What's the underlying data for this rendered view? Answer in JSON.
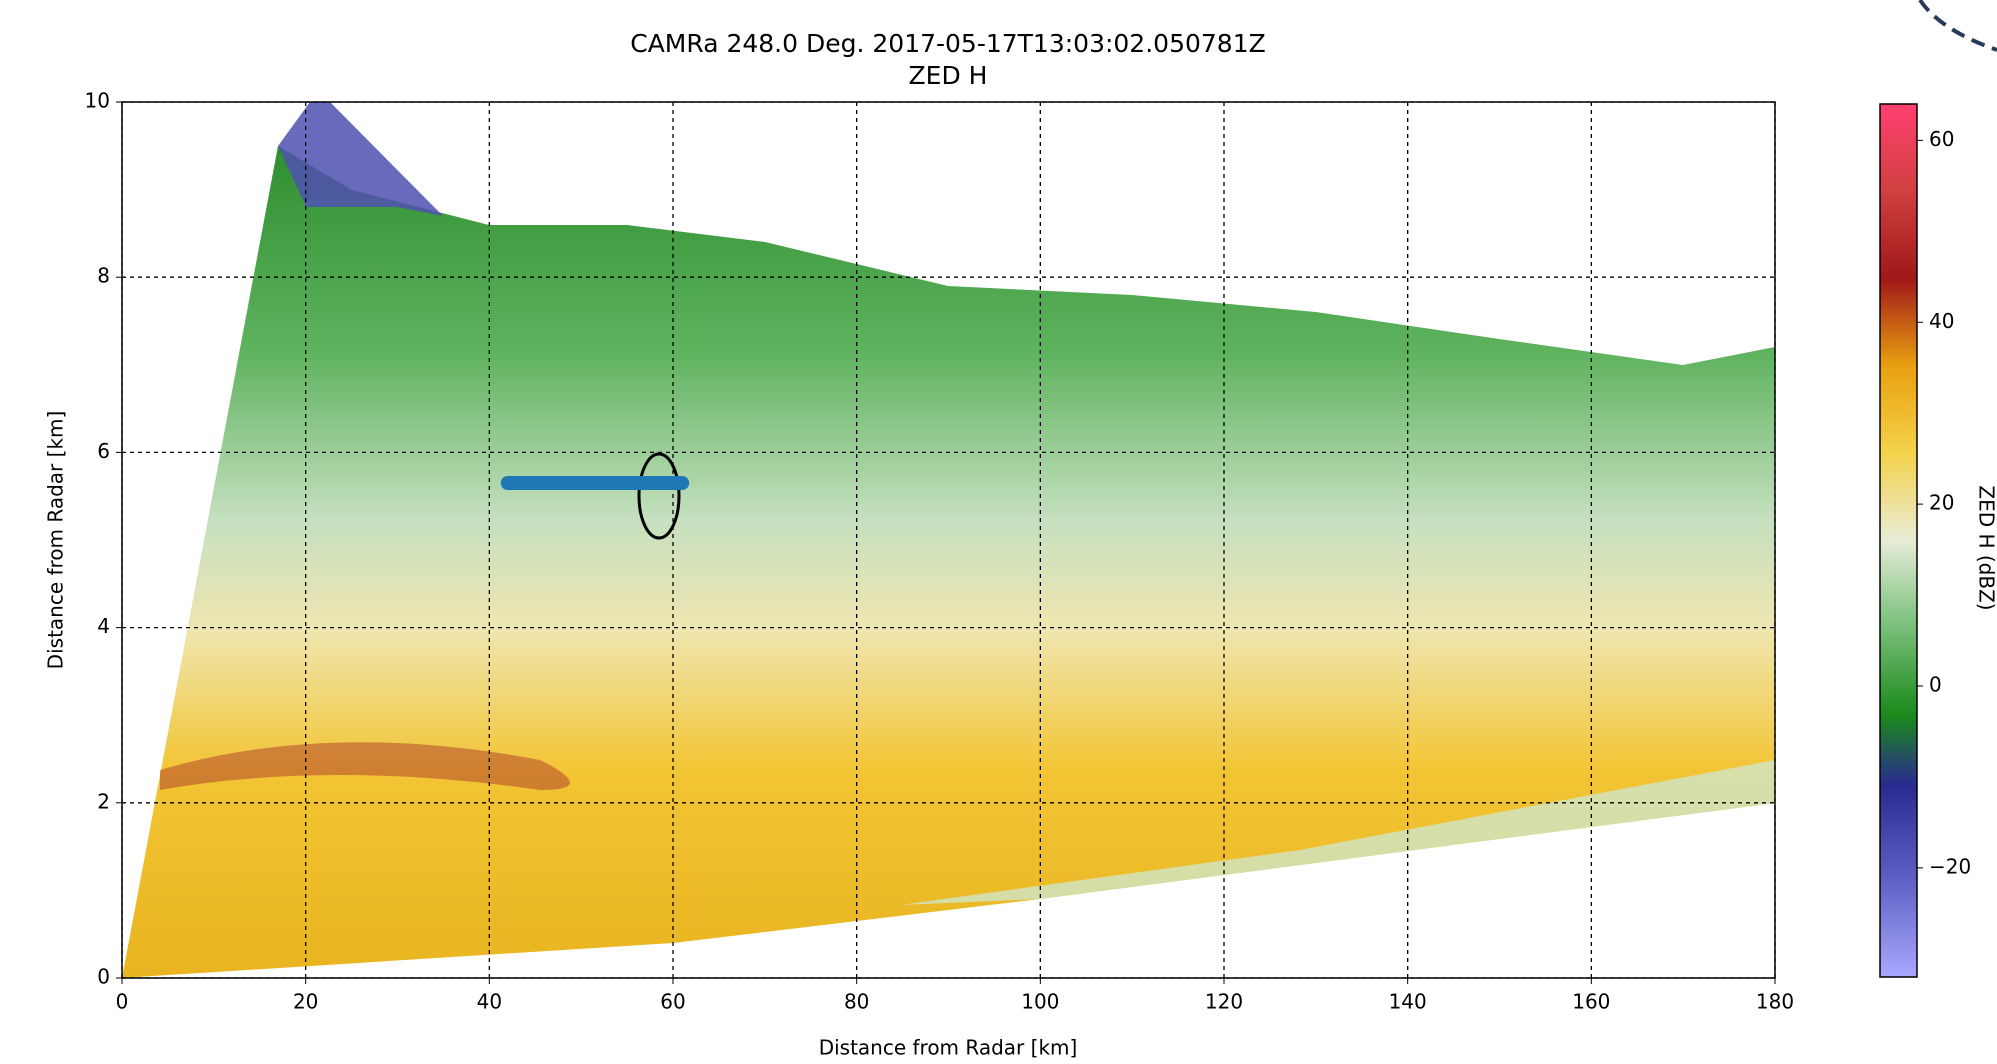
{
  "chart_data": {
    "type": "radar-rhi",
    "title": "CAMRa 248.0 Deg. 2017-05-17T13:03:02.050781Z",
    "subtitle": "ZED H",
    "x_label": "Distance from Radar [km]",
    "y_label": "Distance from Radar [km]",
    "xlim": [
      0,
      180
    ],
    "xticks": [
      0,
      20,
      40,
      60,
      80,
      100,
      120,
      140,
      160,
      180
    ],
    "ylim": [
      0,
      10
    ],
    "yticks": [
      0,
      2,
      4,
      6,
      8,
      10
    ],
    "grid": true,
    "track": {
      "x": [
        42,
        61
      ],
      "y": [
        5.65,
        5.65
      ],
      "color": "#1f77b4"
    },
    "colorbar": {
      "label": "ZED H (dBZ)",
      "lim": [
        -32,
        64
      ],
      "ticks": [
        {
          "value": -20,
          "label": "−20"
        },
        0,
        20,
        40,
        60
      ]
    }
  }
}
